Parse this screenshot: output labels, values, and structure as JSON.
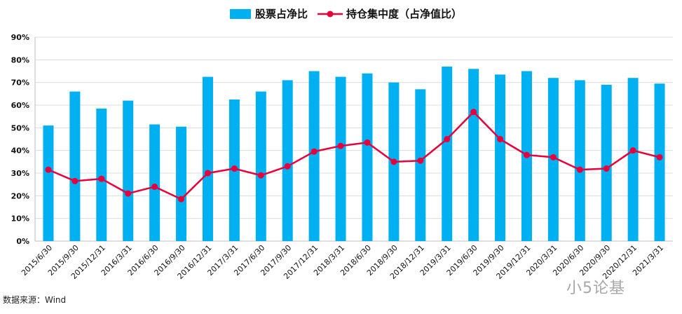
{
  "chart_data": {
    "type": "bar",
    "categories": [
      "2015/6/30",
      "2015/9/30",
      "2015/12/31",
      "2016/3/31",
      "2016/6/30",
      "2016/9/30",
      "2016/12/31",
      "2017/3/31",
      "2017/6/30",
      "2017/9/30",
      "2017/12/31",
      "2018/3/31",
      "2018/6/30",
      "2018/9/30",
      "2018/12/31",
      "2019/3/31",
      "2019/6/30",
      "2019/9/30",
      "2019/12/31",
      "2020/3/31",
      "2020/6/30",
      "2020/9/30",
      "2020/12/31",
      "2021/3/31"
    ],
    "series": [
      {
        "name": "股票占净比",
        "type": "bar",
        "color": "#00b0f0",
        "values": [
          51,
          66,
          58.5,
          62,
          51.5,
          50.5,
          72.5,
          62.5,
          66,
          71,
          75,
          72.5,
          74,
          70,
          67,
          77,
          76,
          73.5,
          75,
          72,
          71,
          69,
          72,
          69.5
        ]
      },
      {
        "name": "持仓集中度（占净值比）",
        "type": "line",
        "color": "#e8003c",
        "values": [
          31.5,
          26.5,
          27.5,
          21,
          24,
          18.5,
          30,
          32,
          29,
          33,
          39.5,
          42,
          43.5,
          35,
          35.5,
          45,
          57,
          45,
          38,
          37,
          31.5,
          32,
          40,
          37
        ]
      }
    ],
    "ylim": [
      0,
      90
    ],
    "yticks": [
      0,
      10,
      20,
      30,
      40,
      50,
      60,
      70,
      80,
      90
    ],
    "ytick_labels": [
      "0%",
      "10%",
      "20%",
      "30%",
      "40%",
      "50%",
      "60%",
      "70%",
      "80%",
      "90%"
    ],
    "grid": true,
    "legend": "top-center"
  },
  "source": "数据来源：Wind",
  "watermark": "小5论基"
}
